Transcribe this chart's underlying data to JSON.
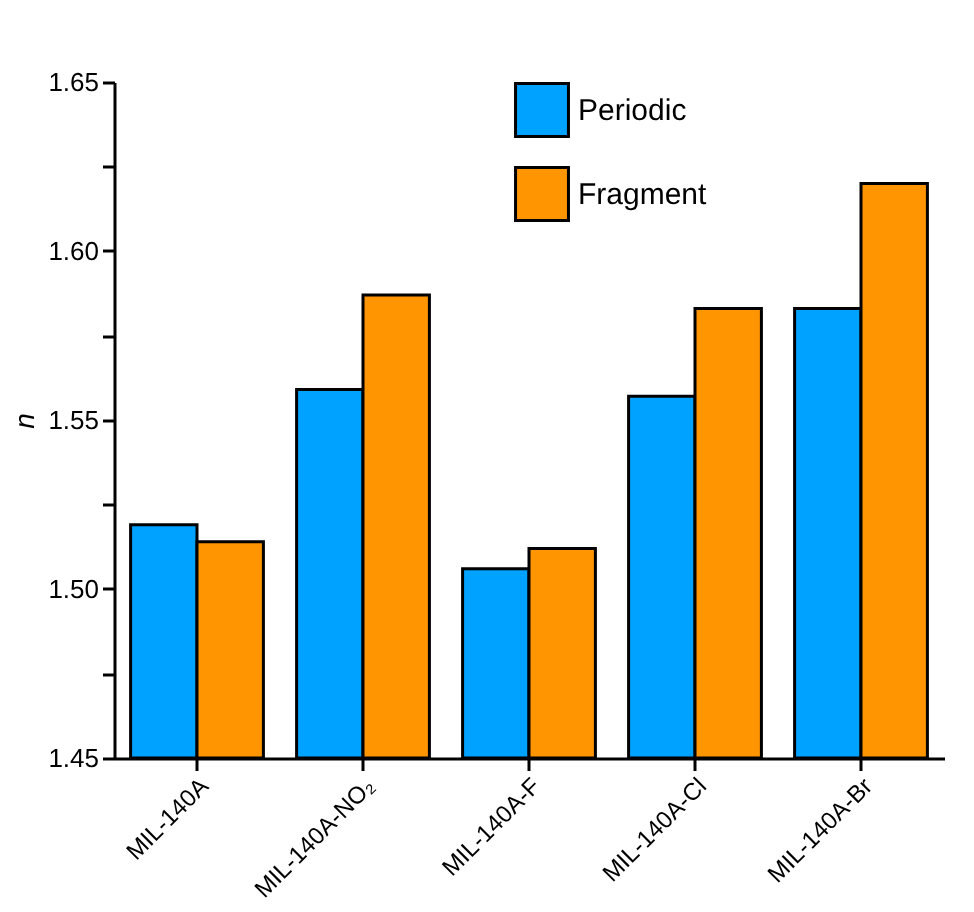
{
  "chart_data": {
    "type": "bar",
    "ylabel": "n",
    "categories": [
      "MIL-140A",
      "MIL-140A-NO₂",
      "MIL-140A-F",
      "MIL-140A-Cl",
      "MIL-140A-Br"
    ],
    "series": [
      {
        "name": "Periodic",
        "color": "#00a2ff",
        "values": [
          1.519,
          1.559,
          1.506,
          1.557,
          1.583
        ]
      },
      {
        "name": "Fragment",
        "color": "#ff9500",
        "values": [
          1.514,
          1.587,
          1.512,
          1.583,
          1.62
        ]
      }
    ],
    "ylim": [
      1.45,
      1.65
    ],
    "yticks": [
      {
        "value": 1.45,
        "label": "1.45"
      },
      {
        "value": 1.475,
        "label": null
      },
      {
        "value": 1.5,
        "label": "1.50"
      },
      {
        "value": 1.525,
        "label": null
      },
      {
        "value": 1.55,
        "label": "1.55"
      },
      {
        "value": 1.575,
        "label": null
      },
      {
        "value": 1.6,
        "label": "1.60"
      },
      {
        "value": 1.625,
        "label": null
      },
      {
        "value": 1.65,
        "label": "1.65"
      }
    ],
    "legend": "top",
    "grid": false
  }
}
